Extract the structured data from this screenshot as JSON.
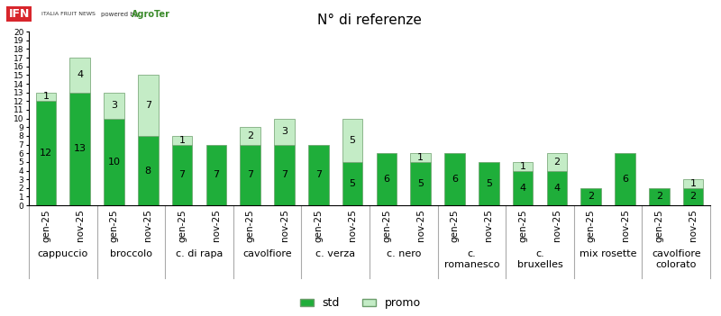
{
  "chart_data": {
    "type": "bar",
    "title": "N° di referenze",
    "annotations": [
      "IFN",
      "ITALIA FRUIT NEWS",
      "powered by",
      "AgroTer"
    ],
    "categories": [
      "gen-25",
      "nov-25",
      "gen-25",
      "nov-25",
      "gen-25",
      "nov-25",
      "gen-25",
      "nov-25",
      "gen-25",
      "nov-25",
      "gen-25",
      "nov-25",
      "gen-25",
      "nov-25",
      "gen-25",
      "nov-25",
      "gen-25",
      "nov-25",
      "gen-25",
      "nov-25"
    ],
    "groups": [
      "cappuccio",
      "broccolo",
      "c. di rapa",
      "cavolfiore",
      "c. verza",
      "c. nero",
      "c. romanesco",
      "c. bruxelles",
      "mix rosette",
      "cavolfiore colorato"
    ],
    "series": [
      {
        "name": "std",
        "color": "#1fae3a",
        "values": [
          12,
          13,
          10,
          8,
          7,
          7,
          7,
          7,
          7,
          5,
          6,
          5,
          6,
          5,
          4,
          4,
          2,
          6,
          2,
          2
        ]
      },
      {
        "name": "promo",
        "color": "#c4ecc6",
        "values": [
          1,
          4,
          3,
          7,
          1,
          null,
          2,
          3,
          null,
          5,
          null,
          1,
          null,
          null,
          1,
          2,
          null,
          null,
          null,
          1
        ]
      }
    ],
    "stacked": true,
    "data_labels": true,
    "legend": "lower center",
    "grid": false,
    "ylim": [
      0,
      20
    ],
    "yticks": [
      0,
      1,
      2,
      3,
      4,
      5,
      6,
      7,
      8,
      9,
      10,
      11,
      12,
      13,
      14,
      15,
      16,
      17,
      18,
      19,
      20
    ]
  }
}
